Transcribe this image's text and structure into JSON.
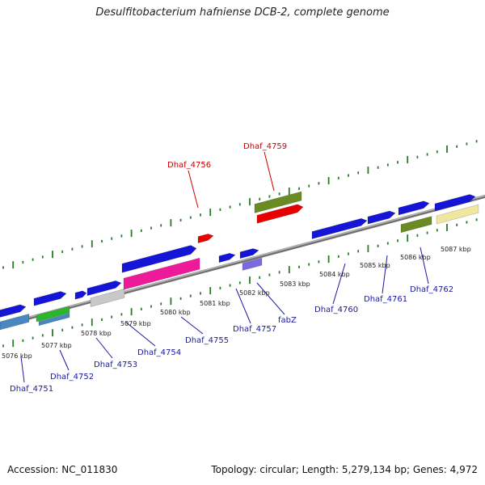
{
  "title": "Desulfitobacterium hafniense DCB-2, complete genome",
  "footer": {
    "accession": "Accession: NC_011830",
    "summary": "Topology: circular; Length: 5,279,134 bp; Genes: 4,972"
  },
  "colors": {
    "backbone": "#888888",
    "ticks": "#2a7a2a",
    "label_blue": "#1a1aa0",
    "label_red": "#cc0000"
  },
  "kbp_labels": [
    "5076 kbp",
    "5077 kbp",
    "5078 kbp",
    "5079 kbp",
    "5080 kbp",
    "5081 kbp",
    "5082 kbp",
    "5083 kbp",
    "5084 kbp",
    "5085 kbp",
    "5086 kbp",
    "5087 kbp"
  ],
  "gene_labels": [
    {
      "text": "Dhaf_4751",
      "color": "blue"
    },
    {
      "text": "Dhaf_4752",
      "color": "blue"
    },
    {
      "text": "Dhaf_4753",
      "color": "blue"
    },
    {
      "text": "Dhaf_4754",
      "color": "blue"
    },
    {
      "text": "Dhaf_4755",
      "color": "blue"
    },
    {
      "text": "Dhaf_4757",
      "color": "blue"
    },
    {
      "text": "fabZ",
      "color": "blue"
    },
    {
      "text": "Dhaf_4760",
      "color": "blue"
    },
    {
      "text": "Dhaf_4761",
      "color": "blue"
    },
    {
      "text": "Dhaf_4762",
      "color": "blue"
    },
    {
      "text": "Dhaf_4756",
      "color": "red"
    },
    {
      "text": "Dhaf_4759",
      "color": "red"
    }
  ]
}
